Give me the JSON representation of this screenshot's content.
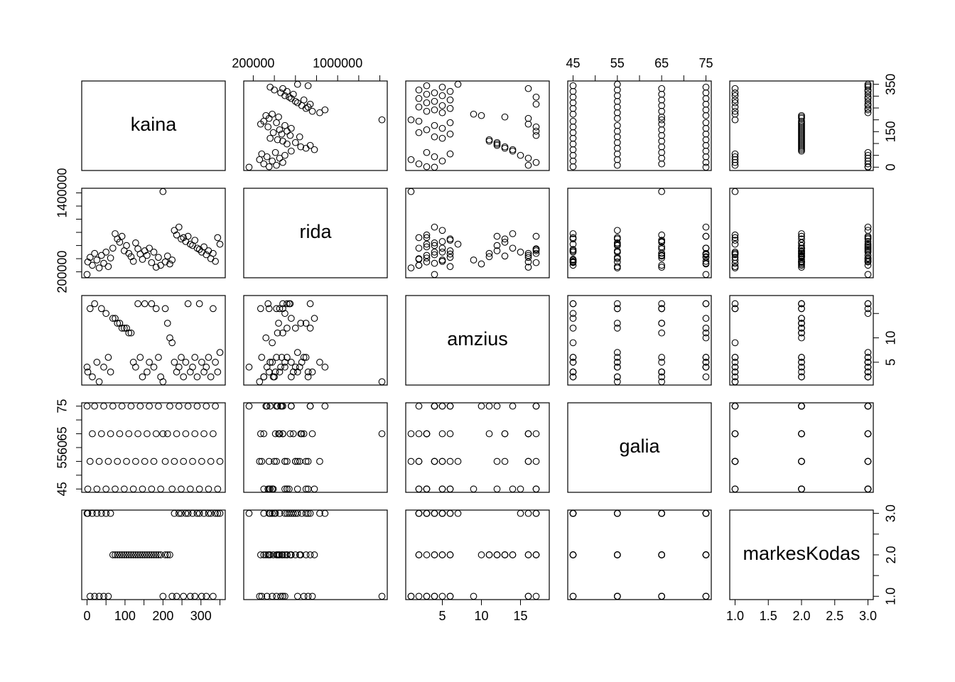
{
  "chart_data": {
    "type": "scatter-matrix",
    "variables": [
      {
        "name": "kaina",
        "lim": [
          -14,
          364
        ],
        "values": [
          2,
          8,
          14,
          20,
          26,
          32,
          38,
          44,
          50,
          56,
          62,
          68,
          74,
          80,
          86,
          92,
          98,
          104,
          110,
          116,
          122,
          128,
          134,
          140,
          146,
          152,
          158,
          164,
          170,
          176,
          182,
          188,
          194,
          200,
          206,
          212,
          218,
          224,
          230,
          236,
          242,
          248,
          254,
          260,
          266,
          272,
          278,
          284,
          290,
          296,
          302,
          308,
          314,
          320,
          326,
          332,
          338,
          344,
          350,
          0
        ]
      },
      {
        "name": "rida",
        "lim": [
          109600,
          1470400
        ],
        "values": [
          350000,
          420000,
          300000,
          480000,
          380000,
          260000,
          450000,
          330000,
          500000,
          280000,
          410000,
          560000,
          780000,
          700000,
          650000,
          740000,
          520000,
          600000,
          480000,
          430000,
          360000,
          640000,
          550000,
          470000,
          390000,
          520000,
          450000,
          560000,
          340000,
          500000,
          270000,
          420000,
          300000,
          1420000,
          350000,
          440000,
          320000,
          380000,
          830000,
          760000,
          880000,
          700000,
          720000,
          660000,
          740000,
          620000,
          600000,
          680000,
          560000,
          540000,
          500000,
          580000,
          460000,
          520000,
          400000,
          480000,
          360000,
          720000,
          620000,
          160000
        ]
      },
      {
        "name": "amzius",
        "lim": [
          0.32,
          18.68
        ],
        "values": [
          3,
          16,
          2,
          17,
          5,
          1,
          16,
          4,
          15,
          6,
          3,
          14,
          14,
          13,
          13,
          12,
          12,
          12,
          11,
          11,
          5,
          4,
          17,
          6,
          2,
          17,
          3,
          5,
          17,
          4,
          16,
          6,
          2,
          1,
          16,
          13,
          10,
          9,
          5,
          3,
          4,
          6,
          2,
          5,
          17,
          3,
          4,
          6,
          2,
          17,
          5,
          3,
          4,
          6,
          2,
          16,
          5,
          3,
          7,
          4
        ]
      },
      {
        "name": "galia",
        "lim": [
          43.8,
          76.2
        ],
        "values": [
          45,
          55,
          65,
          75,
          45,
          55,
          65,
          75,
          45,
          55,
          65,
          75,
          45,
          55,
          65,
          75,
          45,
          55,
          65,
          75,
          45,
          55,
          65,
          75,
          45,
          55,
          65,
          75,
          45,
          55,
          65,
          75,
          45,
          65,
          55,
          65,
          75,
          45,
          55,
          65,
          75,
          45,
          55,
          65,
          75,
          45,
          55,
          65,
          75,
          45,
          55,
          65,
          75,
          45,
          55,
          65,
          75,
          45,
          55,
          75
        ]
      },
      {
        "name": "markesKodas",
        "lim": [
          0.92,
          3.08
        ],
        "values": [
          3,
          1,
          3,
          1,
          3,
          1,
          3,
          1,
          3,
          1,
          3,
          2,
          2,
          2,
          2,
          2,
          2,
          2,
          2,
          2,
          2,
          2,
          2,
          2,
          2,
          2,
          2,
          2,
          2,
          2,
          2,
          2,
          2,
          1,
          2,
          2,
          2,
          1,
          3,
          1,
          3,
          3,
          1,
          3,
          3,
          1,
          3,
          1,
          3,
          3,
          1,
          3,
          1,
          3,
          3,
          1,
          3,
          3,
          3,
          3
        ]
      }
    ],
    "axes": [
      {
        "variable": 0,
        "side": "bottom",
        "ticks": [
          0,
          {
            "value": 50,
            "label": null
          },
          100,
          {
            "value": 150,
            "label": null
          },
          200,
          {
            "value": 250,
            "label": null
          },
          300,
          {
            "value": 350,
            "label": null
          }
        ]
      },
      {
        "variable": 0,
        "side": "right",
        "ticks": [
          0,
          {
            "value": 50,
            "label": null
          },
          {
            "value": 100,
            "label": null
          },
          150,
          {
            "value": 200,
            "label": null
          },
          {
            "value": 250,
            "label": null
          },
          {
            "value": 300,
            "label": null
          },
          350
        ]
      },
      {
        "variable": 1,
        "side": "top",
        "ticks": [
          200000,
          {
            "value": 400000,
            "label": null
          },
          {
            "value": 600000,
            "label": null
          },
          {
            "value": 800000,
            "label": null
          },
          1000000,
          {
            "value": 1200000,
            "label": null
          },
          {
            "value": 1400000,
            "label": null
          }
        ]
      },
      {
        "variable": 1,
        "side": "left",
        "ticks": [
          200000,
          {
            "value": 400000,
            "label": null
          },
          {
            "value": 600000,
            "label": null
          },
          {
            "value": 800000,
            "label": null
          },
          {
            "value": 1000000,
            "label": null
          },
          {
            "value": 1200000,
            "label": null
          },
          1400000
        ]
      },
      {
        "variable": 2,
        "side": "bottom",
        "ticks": [
          5,
          10,
          15
        ]
      },
      {
        "variable": 2,
        "side": "right",
        "ticks": [
          5,
          10,
          {
            "value": 15,
            "label": null
          }
        ]
      },
      {
        "variable": 3,
        "side": "top",
        "ticks": [
          45,
          {
            "value": 50,
            "label": null
          },
          55,
          {
            "value": 60,
            "label": null
          },
          65,
          {
            "value": 70,
            "label": null
          },
          75
        ]
      },
      {
        "variable": 3,
        "side": "left",
        "ticks": [
          45,
          {
            "value": 50,
            "label": null
          },
          55,
          60,
          65,
          {
            "value": 70,
            "label": null
          },
          75
        ]
      },
      {
        "variable": 4,
        "side": "bottom",
        "ticks": [
          {
            "value": 1,
            "label": "1.0"
          },
          1.5,
          {
            "value": 2,
            "label": "2.0"
          },
          2.5,
          {
            "value": 3,
            "label": "3.0"
          }
        ]
      },
      {
        "variable": 4,
        "side": "right",
        "ticks": [
          {
            "value": 1,
            "label": "1.0"
          },
          {
            "value": 1.5,
            "label": null
          },
          {
            "value": 2,
            "label": "2.0"
          },
          {
            "value": 2.5,
            "label": null
          },
          {
            "value": 3,
            "label": "3.0"
          }
        ]
      }
    ]
  }
}
